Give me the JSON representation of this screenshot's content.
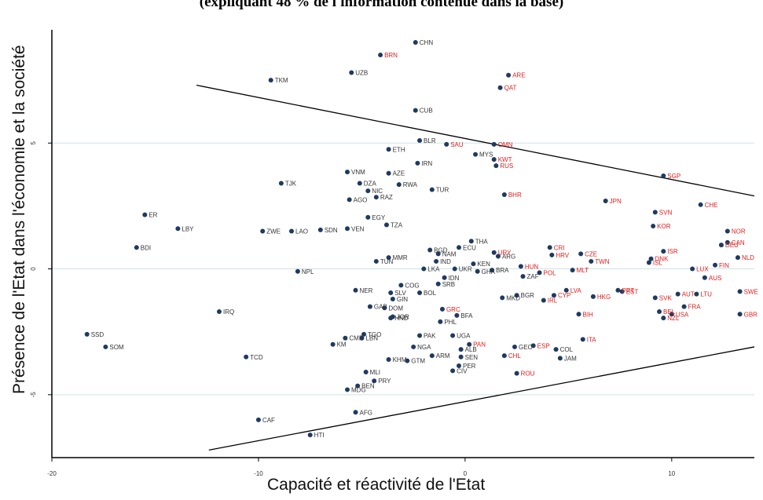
{
  "chart_data": {
    "type": "scatter",
    "title": "(expliquant 48 % de l'information contenue dans la base)",
    "xlabel": "Capacité et réactivité de l'Etat",
    "ylabel": "Présence de l'Etat dans l'économie et la société",
    "xlim": [
      -20,
      14
    ],
    "ylim": [
      -7.5,
      9.5
    ],
    "x_ticks": [
      "-20",
      "-10",
      "0",
      "10"
    ],
    "x_tick_values": [
      -20,
      -10,
      0,
      10
    ],
    "y_ticks": [
      "5",
      "0",
      "-5"
    ],
    "y_tick_values": [
      5,
      0,
      -5
    ],
    "grid": "horizontal",
    "colors": {
      "point": "#1f3a5f",
      "label_dark": "#333333",
      "label_red": "#e31b1b",
      "axis": "#000000",
      "grid": "#cfe3e3"
    },
    "boundary_lines": [
      {
        "from": [
          -13,
          7.3
        ],
        "to": [
          14,
          2.9
        ]
      },
      {
        "from": [
          -12.4,
          -7.2
        ],
        "to": [
          14,
          -3.1
        ]
      }
    ],
    "points": [
      {
        "label": "CHN",
        "x": -2.4,
        "y": 9.0,
        "red": false
      },
      {
        "label": "BRN",
        "x": -4.1,
        "y": 8.5,
        "red": true
      },
      {
        "label": "UZB",
        "x": -5.5,
        "y": 7.8,
        "red": false
      },
      {
        "label": "TKM",
        "x": -9.4,
        "y": 7.5,
        "red": false
      },
      {
        "label": "ARE",
        "x": 2.1,
        "y": 7.7,
        "red": true
      },
      {
        "label": "QAT",
        "x": 1.7,
        "y": 7.2,
        "red": true
      },
      {
        "label": "CUB",
        "x": -2.4,
        "y": 6.3,
        "red": false
      },
      {
        "label": "BLR",
        "x": -2.2,
        "y": 5.1,
        "red": false
      },
      {
        "label": "SAU",
        "x": -0.9,
        "y": 4.95,
        "red": true
      },
      {
        "label": "OMN",
        "x": 1.4,
        "y": 4.95,
        "red": true
      },
      {
        "label": "ETH",
        "x": -3.7,
        "y": 4.75,
        "red": false
      },
      {
        "label": "MYS",
        "x": 0.5,
        "y": 4.55,
        "red": false
      },
      {
        "label": "KWT",
        "x": 1.4,
        "y": 4.35,
        "red": true
      },
      {
        "label": "RUS",
        "x": 1.5,
        "y": 4.1,
        "red": true
      },
      {
        "label": "IRN",
        "x": -2.3,
        "y": 4.2,
        "red": false
      },
      {
        "label": "VNM",
        "x": -5.7,
        "y": 3.85,
        "red": false
      },
      {
        "label": "AZE",
        "x": -3.7,
        "y": 3.8,
        "red": false
      },
      {
        "label": "DZA",
        "x": -5.1,
        "y": 3.4,
        "red": false
      },
      {
        "label": "TJK",
        "x": -8.9,
        "y": 3.4,
        "red": false
      },
      {
        "label": "RWA",
        "x": -3.2,
        "y": 3.35,
        "red": false
      },
      {
        "label": "TUR",
        "x": -1.6,
        "y": 3.15,
        "red": false
      },
      {
        "label": "NIC",
        "x": -4.7,
        "y": 3.1,
        "red": false
      },
      {
        "label": "RAZ",
        "x": -4.3,
        "y": 2.85,
        "red": false
      },
      {
        "label": "AGO",
        "x": -5.6,
        "y": 2.75,
        "red": false
      },
      {
        "label": "BHR",
        "x": 1.9,
        "y": 2.95,
        "red": true
      },
      {
        "label": "SGP",
        "x": 9.6,
        "y": 3.7,
        "red": true
      },
      {
        "label": "JPN",
        "x": 6.8,
        "y": 2.7,
        "red": true
      },
      {
        "label": "CHE",
        "x": 11.4,
        "y": 2.55,
        "red": true
      },
      {
        "label": "SVN",
        "x": 9.2,
        "y": 2.25,
        "red": true
      },
      {
        "label": "KOR",
        "x": 9.1,
        "y": 1.7,
        "red": true
      },
      {
        "label": "NOR",
        "x": 12.7,
        "y": 1.5,
        "red": true
      },
      {
        "label": "CAN",
        "x": 12.7,
        "y": 1.05,
        "red": true
      },
      {
        "label": "NLD",
        "x": 13.2,
        "y": 0.45,
        "red": true
      },
      {
        "label": "DEU",
        "x": 12.4,
        "y": 0.95,
        "red": true
      },
      {
        "label": "FIN",
        "x": 12.1,
        "y": 0.15,
        "red": true
      },
      {
        "label": "ISR",
        "x": 9.6,
        "y": 0.7,
        "red": true
      },
      {
        "label": "DNK",
        "x": 9.0,
        "y": 0.4,
        "red": true
      },
      {
        "label": "ISL",
        "x": 8.9,
        "y": 0.25,
        "red": true
      },
      {
        "label": "LUX",
        "x": 11.0,
        "y": 0.0,
        "red": true
      },
      {
        "label": "AUS",
        "x": 11.6,
        "y": -0.35,
        "red": true
      },
      {
        "label": "SWE",
        "x": 13.3,
        "y": -0.9,
        "red": true
      },
      {
        "label": "ER",
        "x": -15.5,
        "y": 2.15,
        "red": false
      },
      {
        "label": "LBY",
        "x": -13.9,
        "y": 1.6,
        "red": false
      },
      {
        "label": "BDI",
        "x": -15.9,
        "y": 0.85,
        "red": false
      },
      {
        "label": "EGY",
        "x": -4.7,
        "y": 2.05,
        "red": false
      },
      {
        "label": "SDN",
        "x": -7.0,
        "y": 1.55,
        "red": false
      },
      {
        "label": "VEN",
        "x": -5.7,
        "y": 1.6,
        "red": false
      },
      {
        "label": "ZWE",
        "x": -9.8,
        "y": 1.5,
        "red": false
      },
      {
        "label": "LAO",
        "x": -8.4,
        "y": 1.5,
        "red": false
      },
      {
        "label": "TZA",
        "x": -3.8,
        "y": 1.75,
        "red": false
      },
      {
        "label": "THA",
        "x": 0.3,
        "y": 1.1,
        "red": false
      },
      {
        "label": "ECU",
        "x": -0.3,
        "y": 0.85,
        "red": false
      },
      {
        "label": "BGD",
        "x": -1.7,
        "y": 0.75,
        "red": false
      },
      {
        "label": "NAM",
        "x": -1.3,
        "y": 0.6,
        "red": false
      },
      {
        "label": "MMR",
        "x": -3.7,
        "y": 0.45,
        "red": false
      },
      {
        "label": "URY",
        "x": 1.4,
        "y": 0.65,
        "red": true
      },
      {
        "label": "CRI",
        "x": 4.1,
        "y": 0.85,
        "red": true
      },
      {
        "label": "CZE",
        "x": 5.6,
        "y": 0.6,
        "red": true
      },
      {
        "label": "HRV",
        "x": 4.2,
        "y": 0.55,
        "red": true
      },
      {
        "label": "ARG",
        "x": 1.6,
        "y": 0.5,
        "red": false
      },
      {
        "label": "TWN",
        "x": 6.1,
        "y": 0.3,
        "red": true
      },
      {
        "label": "IND",
        "x": -1.4,
        "y": 0.3,
        "red": false
      },
      {
        "label": "KEN",
        "x": 0.4,
        "y": 0.2,
        "red": false
      },
      {
        "label": "HUN",
        "x": 2.7,
        "y": 0.1,
        "red": true
      },
      {
        "label": "TUN",
        "x": -4.3,
        "y": 0.3,
        "red": false
      },
      {
        "label": "NPL",
        "x": -8.1,
        "y": -0.1,
        "red": false
      },
      {
        "label": "LKA",
        "x": -2.0,
        "y": 0.0,
        "red": false
      },
      {
        "label": "UKR",
        "x": -0.5,
        "y": 0.0,
        "red": false
      },
      {
        "label": "GHA",
        "x": 0.6,
        "y": -0.1,
        "red": false
      },
      {
        "label": "BRA",
        "x": 1.3,
        "y": -0.05,
        "red": false
      },
      {
        "label": "POL",
        "x": 3.6,
        "y": -0.15,
        "red": true
      },
      {
        "label": "MLT",
        "x": 5.2,
        "y": -0.05,
        "red": true
      },
      {
        "label": "ZAF",
        "x": 2.8,
        "y": -0.3,
        "red": false
      },
      {
        "label": "IDN",
        "x": -1.0,
        "y": -0.35,
        "red": false
      },
      {
        "label": "COG",
        "x": -3.1,
        "y": -0.65,
        "red": false
      },
      {
        "label": "SRB",
        "x": -1.3,
        "y": -0.6,
        "red": false
      },
      {
        "label": "SLV",
        "x": -3.6,
        "y": -0.95,
        "red": false
      },
      {
        "label": "BOL",
        "x": -2.2,
        "y": -0.95,
        "red": false
      },
      {
        "label": "NER",
        "x": -5.3,
        "y": -0.85,
        "red": false
      },
      {
        "label": "GIN",
        "x": -3.5,
        "y": -1.2,
        "red": false
      },
      {
        "label": "BGR",
        "x": 2.5,
        "y": -1.05,
        "red": false
      },
      {
        "label": "MKD",
        "x": 1.8,
        "y": -1.15,
        "red": false
      },
      {
        "label": "LVA",
        "x": 4.9,
        "y": -0.85,
        "red": true
      },
      {
        "label": "CYP",
        "x": 4.3,
        "y": -1.05,
        "red": true
      },
      {
        "label": "IRL",
        "x": 3.8,
        "y": -1.25,
        "red": true
      },
      {
        "label": "HKG",
        "x": 6.2,
        "y": -1.1,
        "red": true
      },
      {
        "label": "PRT",
        "x": 7.4,
        "y": -0.85,
        "red": true
      },
      {
        "label": "EST",
        "x": 7.6,
        "y": -0.9,
        "red": true
      },
      {
        "label": "SVK",
        "x": 9.2,
        "y": -1.15,
        "red": true
      },
      {
        "label": "AUT",
        "x": 10.3,
        "y": -1.0,
        "red": true
      },
      {
        "label": "LTU",
        "x": 11.2,
        "y": -1.0,
        "red": true
      },
      {
        "label": "FRA",
        "x": 10.6,
        "y": -1.5,
        "red": true
      },
      {
        "label": "BEL",
        "x": 9.4,
        "y": -1.7,
        "red": true
      },
      {
        "label": "USA",
        "x": 10.0,
        "y": -1.8,
        "red": true
      },
      {
        "label": "NZL",
        "x": 9.6,
        "y": -1.95,
        "red": true
      },
      {
        "label": "GBR",
        "x": 13.3,
        "y": -1.8,
        "red": true
      },
      {
        "label": "BIH",
        "x": 5.5,
        "y": -1.8,
        "red": true
      },
      {
        "label": "IRQ",
        "x": -11.9,
        "y": -1.7,
        "red": false
      },
      {
        "label": "GAB",
        "x": -4.6,
        "y": -1.5,
        "red": false
      },
      {
        "label": "DOM",
        "x": -3.9,
        "y": -1.55,
        "red": false
      },
      {
        "label": "JOR",
        "x": -3.5,
        "y": -1.9,
        "red": false
      },
      {
        "label": "HND",
        "x": -3.6,
        "y": -1.95,
        "red": false
      },
      {
        "label": "GRC",
        "x": -1.1,
        "y": -1.6,
        "red": true
      },
      {
        "label": "BFA",
        "x": -0.4,
        "y": -1.85,
        "red": false
      },
      {
        "label": "PHL",
        "x": -1.2,
        "y": -2.1,
        "red": false
      },
      {
        "label": "TGO",
        "x": -4.9,
        "y": -2.6,
        "red": false
      },
      {
        "label": "LBN",
        "x": -5.0,
        "y": -2.75,
        "red": false
      },
      {
        "label": "CMR",
        "x": -5.8,
        "y": -2.75,
        "red": false
      },
      {
        "label": "KM",
        "x": -6.4,
        "y": -3.0,
        "red": false
      },
      {
        "label": "PAK",
        "x": -2.2,
        "y": -2.65,
        "red": false
      },
      {
        "label": "UGA",
        "x": -0.6,
        "y": -2.65,
        "red": false
      },
      {
        "label": "NGA",
        "x": -2.5,
        "y": -3.1,
        "red": false
      },
      {
        "label": "ALB",
        "x": -0.2,
        "y": -3.2,
        "red": false
      },
      {
        "label": "PAN",
        "x": 0.2,
        "y": -3.0,
        "red": true
      },
      {
        "label": "GEO",
        "x": 2.4,
        "y": -3.1,
        "red": false
      },
      {
        "label": "ESP",
        "x": 3.3,
        "y": -3.05,
        "red": true
      },
      {
        "label": "COL",
        "x": 4.4,
        "y": -3.2,
        "red": false
      },
      {
        "label": "ITA",
        "x": 5.7,
        "y": -2.8,
        "red": true
      },
      {
        "label": "CHL",
        "x": 1.9,
        "y": -3.45,
        "red": true
      },
      {
        "label": "JAM",
        "x": 4.6,
        "y": -3.55,
        "red": false
      },
      {
        "label": "ARM",
        "x": -1.6,
        "y": -3.45,
        "red": false
      },
      {
        "label": "SEN",
        "x": -0.2,
        "y": -3.5,
        "red": false
      },
      {
        "label": "GTM",
        "x": -2.8,
        "y": -3.65,
        "red": false
      },
      {
        "label": "KHM",
        "x": -3.7,
        "y": -3.6,
        "red": false
      },
      {
        "label": "PER",
        "x": -0.3,
        "y": -3.85,
        "red": false
      },
      {
        "label": "CIV",
        "x": -0.6,
        "y": -4.05,
        "red": false
      },
      {
        "label": "MLI",
        "x": -4.8,
        "y": -4.1,
        "red": false
      },
      {
        "label": "ROU",
        "x": 2.5,
        "y": -4.15,
        "red": true
      },
      {
        "label": "TCD",
        "x": -10.6,
        "y": -3.5,
        "red": false
      },
      {
        "label": "SSD",
        "x": -18.3,
        "y": -2.6,
        "red": false
      },
      {
        "label": "SOM",
        "x": -17.4,
        "y": -3.1,
        "red": false
      },
      {
        "label": "PRY",
        "x": -4.4,
        "y": -4.45,
        "red": false
      },
      {
        "label": "BEN",
        "x": -5.2,
        "y": -4.65,
        "red": false
      },
      {
        "label": "MDG",
        "x": -5.7,
        "y": -4.8,
        "red": false
      },
      {
        "label": "AFG",
        "x": -5.3,
        "y": -5.7,
        "red": false
      },
      {
        "label": "CAF",
        "x": -10.0,
        "y": -6.0,
        "red": false
      },
      {
        "label": "HTI",
        "x": -7.5,
        "y": -6.6,
        "red": false
      }
    ]
  }
}
